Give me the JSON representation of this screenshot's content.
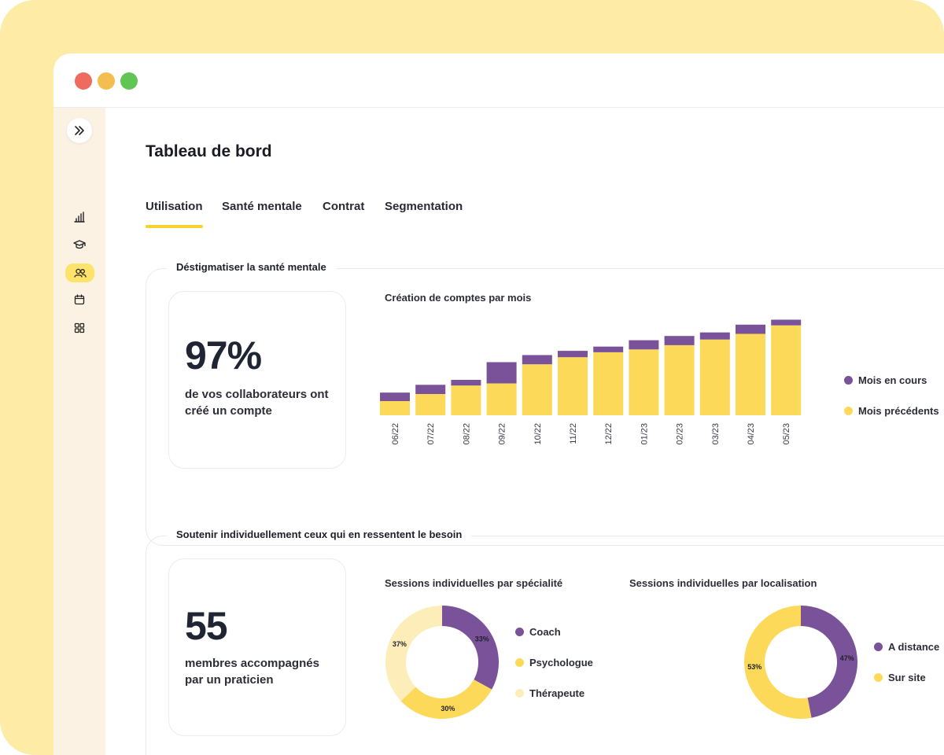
{
  "colors": {
    "purple": "#7a5299",
    "yellow": "#fdd95a",
    "light_yellow": "#fdeeb9",
    "accent": "#f8d02f",
    "backdrop": "#fdeba6"
  },
  "sidebar": {
    "items": [
      {
        "icon": "chevrons-right-icon"
      },
      {
        "icon": "bar-chart-icon"
      },
      {
        "icon": "graduation-cap-icon"
      },
      {
        "icon": "users-icon",
        "active": true
      },
      {
        "icon": "calendar-icon"
      },
      {
        "icon": "grid-icon"
      }
    ]
  },
  "header": {
    "title": "Tableau de bord"
  },
  "tabs": [
    {
      "label": "Utilisation",
      "active": true
    },
    {
      "label": "Santé mentale"
    },
    {
      "label": "Contrat"
    },
    {
      "label": "Segmentation"
    }
  ],
  "section1": {
    "title": "Déstigmatiser la santé mentale",
    "kpi": {
      "value": "97%",
      "caption": "de vos collaborateurs ont créé un compte"
    }
  },
  "section2": {
    "title": "Soutenir individuellement ceux qui en ressentent le besoin",
    "kpi": {
      "value": "55",
      "caption": "membres accompagnés par un praticien"
    }
  },
  "chart_data": [
    {
      "type": "bar",
      "title": "Création de comptes par mois",
      "stacked": true,
      "categories": [
        "06/22",
        "07/22",
        "08/22",
        "09/22",
        "10/22",
        "11/22",
        "12/22",
        "01/23",
        "02/23",
        "03/23",
        "04/23",
        "05/23"
      ],
      "series": [
        {
          "name": "Mois précédents",
          "color": "#fdd95a",
          "values": [
            20,
            30,
            42,
            45,
            72,
            82,
            89,
            93,
            99,
            107,
            115,
            127
          ]
        },
        {
          "name": "Mois en cours",
          "color": "#7a5299",
          "values": [
            12,
            13,
            8,
            30,
            13,
            9,
            8,
            13,
            13,
            10,
            13,
            8
          ]
        }
      ],
      "legend": "right"
    },
    {
      "type": "pie",
      "title": "Sessions individuelles par spécialité",
      "donut": true,
      "slices": [
        {
          "name": "Coach",
          "value": 33,
          "label": "33%",
          "color": "#7a5299"
        },
        {
          "name": "Psychologue",
          "value": 30,
          "label": "30%",
          "color": "#fdd95a"
        },
        {
          "name": "Thérapeute",
          "value": 37,
          "label": "37%",
          "color": "#fdeeb9"
        }
      ],
      "legend": "right"
    },
    {
      "type": "pie",
      "title": "Sessions individuelles par localisation",
      "donut": true,
      "slices": [
        {
          "name": "A distance",
          "value": 47,
          "label": "47%",
          "color": "#7a5299"
        },
        {
          "name": "Sur site",
          "value": 53,
          "label": "53%",
          "color": "#fdd95a"
        }
      ],
      "legend": "right"
    }
  ]
}
